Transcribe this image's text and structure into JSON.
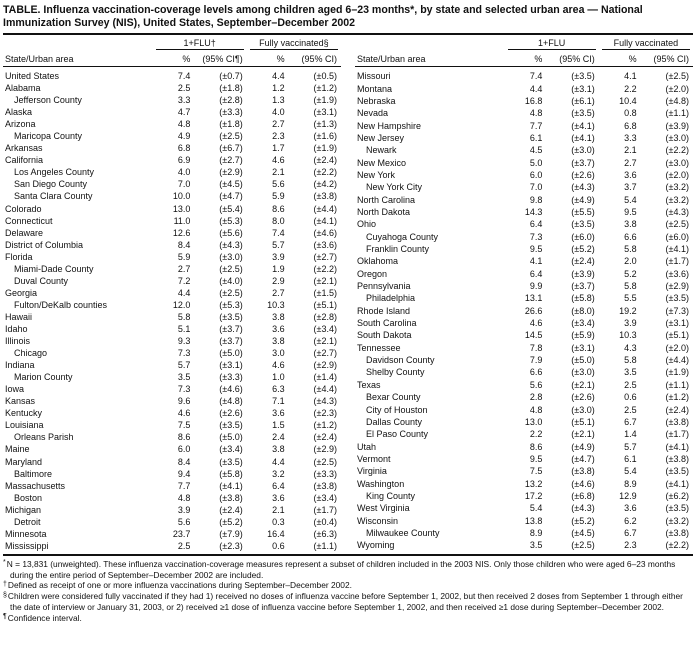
{
  "title": "TABLE. Influenza vaccination-coverage levels among children aged 6–23 months*, by state and selected urban area — National Immunization Survey (NIS), United States, September–December 2002",
  "header": {
    "state_col": "State/Urban area",
    "pct": "%",
    "ci": "(95% CI)",
    "ci_note": "(95% CI¶)",
    "left_group1": "1+FLU†",
    "left_group2": "Fully vaccinated§",
    "right_group1": "1+FLU",
    "right_group2": "Fully vaccinated"
  },
  "left_rows": [
    {
      "name": "United States",
      "indent": false,
      "flu_pct": "7.4",
      "flu_ci": "(±0.7)",
      "full_pct": "4.4",
      "full_ci": "(±0.5)"
    },
    {
      "name": "Alabama",
      "indent": false,
      "flu_pct": "2.5",
      "flu_ci": "(±1.8)",
      "full_pct": "1.2",
      "full_ci": "(±1.2)"
    },
    {
      "name": "Jefferson County",
      "indent": true,
      "flu_pct": "3.3",
      "flu_ci": "(±2.8)",
      "full_pct": "1.3",
      "full_ci": "(±1.9)"
    },
    {
      "name": "Alaska",
      "indent": false,
      "flu_pct": "4.7",
      "flu_ci": "(±3.3)",
      "full_pct": "4.0",
      "full_ci": "(±3.1)"
    },
    {
      "name": "Arizona",
      "indent": false,
      "flu_pct": "4.8",
      "flu_ci": "(±1.8)",
      "full_pct": "2.7",
      "full_ci": "(±1.3)"
    },
    {
      "name": "Maricopa County",
      "indent": true,
      "flu_pct": "4.9",
      "flu_ci": "(±2.5)",
      "full_pct": "2.3",
      "full_ci": "(±1.6)"
    },
    {
      "name": "Arkansas",
      "indent": false,
      "flu_pct": "6.8",
      "flu_ci": "(±6.7)",
      "full_pct": "1.7",
      "full_ci": "(±1.9)"
    },
    {
      "name": "California",
      "indent": false,
      "flu_pct": "6.9",
      "flu_ci": "(±2.7)",
      "full_pct": "4.6",
      "full_ci": "(±2.4)"
    },
    {
      "name": "Los Angeles County",
      "indent": true,
      "flu_pct": "4.0",
      "flu_ci": "(±2.9)",
      "full_pct": "2.1",
      "full_ci": "(±2.2)"
    },
    {
      "name": "San Diego County",
      "indent": true,
      "flu_pct": "7.0",
      "flu_ci": "(±4.5)",
      "full_pct": "5.6",
      "full_ci": "(±4.2)"
    },
    {
      "name": "Santa Clara County",
      "indent": true,
      "flu_pct": "10.0",
      "flu_ci": "(±4.7)",
      "full_pct": "5.9",
      "full_ci": "(±3.8)"
    },
    {
      "name": "Colorado",
      "indent": false,
      "flu_pct": "13.0",
      "flu_ci": "(±5.4)",
      "full_pct": "8.6",
      "full_ci": "(±4.4)"
    },
    {
      "name": "Connecticut",
      "indent": false,
      "flu_pct": "11.0",
      "flu_ci": "(±5.3)",
      "full_pct": "8.0",
      "full_ci": "(±4.1)"
    },
    {
      "name": "Delaware",
      "indent": false,
      "flu_pct": "12.6",
      "flu_ci": "(±5.6)",
      "full_pct": "7.4",
      "full_ci": "(±4.6)"
    },
    {
      "name": "District of Columbia",
      "indent": false,
      "flu_pct": "8.4",
      "flu_ci": "(±4.3)",
      "full_pct": "5.7",
      "full_ci": "(±3.6)"
    },
    {
      "name": "Florida",
      "indent": false,
      "flu_pct": "5.9",
      "flu_ci": "(±3.0)",
      "full_pct": "3.9",
      "full_ci": "(±2.7)"
    },
    {
      "name": "Miami-Dade County",
      "indent": true,
      "flu_pct": "2.7",
      "flu_ci": "(±2.5)",
      "full_pct": "1.9",
      "full_ci": "(±2.2)"
    },
    {
      "name": "Duval County",
      "indent": true,
      "flu_pct": "7.2",
      "flu_ci": "(±4.0)",
      "full_pct": "2.9",
      "full_ci": "(±2.1)"
    },
    {
      "name": "Georgia",
      "indent": false,
      "flu_pct": "4.4",
      "flu_ci": "(±2.5)",
      "full_pct": "2.7",
      "full_ci": "(±1.5)"
    },
    {
      "name": "Fulton/DeKalb counties",
      "indent": true,
      "flu_pct": "12.0",
      "flu_ci": "(±5.3)",
      "full_pct": "10.3",
      "full_ci": "(±5.1)"
    },
    {
      "name": "Hawaii",
      "indent": false,
      "flu_pct": "5.8",
      "flu_ci": "(±3.5)",
      "full_pct": "3.8",
      "full_ci": "(±2.8)"
    },
    {
      "name": "Idaho",
      "indent": false,
      "flu_pct": "5.1",
      "flu_ci": "(±3.7)",
      "full_pct": "3.6",
      "full_ci": "(±3.4)"
    },
    {
      "name": "Illinois",
      "indent": false,
      "flu_pct": "9.3",
      "flu_ci": "(±3.7)",
      "full_pct": "3.8",
      "full_ci": "(±2.1)"
    },
    {
      "name": "Chicago",
      "indent": true,
      "flu_pct": "7.3",
      "flu_ci": "(±5.0)",
      "full_pct": "3.0",
      "full_ci": "(±2.7)"
    },
    {
      "name": "Indiana",
      "indent": false,
      "flu_pct": "5.7",
      "flu_ci": "(±3.1)",
      "full_pct": "4.6",
      "full_ci": "(±2.9)"
    },
    {
      "name": "Marion County",
      "indent": true,
      "flu_pct": "3.5",
      "flu_ci": "(±3.3)",
      "full_pct": "1.0",
      "full_ci": "(±1.4)"
    },
    {
      "name": "Iowa",
      "indent": false,
      "flu_pct": "7.3",
      "flu_ci": "(±4.6)",
      "full_pct": "6.3",
      "full_ci": "(±4.4)"
    },
    {
      "name": "Kansas",
      "indent": false,
      "flu_pct": "9.6",
      "flu_ci": "(±4.8)",
      "full_pct": "7.1",
      "full_ci": "(±4.3)"
    },
    {
      "name": "Kentucky",
      "indent": false,
      "flu_pct": "4.6",
      "flu_ci": "(±2.6)",
      "full_pct": "3.6",
      "full_ci": "(±2.3)"
    },
    {
      "name": "Louisiana",
      "indent": false,
      "flu_pct": "7.5",
      "flu_ci": "(±3.5)",
      "full_pct": "1.5",
      "full_ci": "(±1.2)"
    },
    {
      "name": "Orleans Parish",
      "indent": true,
      "flu_pct": "8.6",
      "flu_ci": "(±5.0)",
      "full_pct": "2.4",
      "full_ci": "(±2.4)"
    },
    {
      "name": "Maine",
      "indent": false,
      "flu_pct": "6.0",
      "flu_ci": "(±3.4)",
      "full_pct": "3.8",
      "full_ci": "(±2.9)"
    },
    {
      "name": "Maryland",
      "indent": false,
      "flu_pct": "8.4",
      "flu_ci": "(±3.5)",
      "full_pct": "4.4",
      "full_ci": "(±2.5)"
    },
    {
      "name": "Baltimore",
      "indent": true,
      "flu_pct": "9.4",
      "flu_ci": "(±5.8)",
      "full_pct": "3.2",
      "full_ci": "(±3.3)"
    },
    {
      "name": "Massachusetts",
      "indent": false,
      "flu_pct": "7.7",
      "flu_ci": "(±4.1)",
      "full_pct": "6.4",
      "full_ci": "(±3.8)"
    },
    {
      "name": "Boston",
      "indent": true,
      "flu_pct": "4.8",
      "flu_ci": "(±3.8)",
      "full_pct": "3.6",
      "full_ci": "(±3.4)"
    },
    {
      "name": "Michigan",
      "indent": false,
      "flu_pct": "3.9",
      "flu_ci": "(±2.4)",
      "full_pct": "2.1",
      "full_ci": "(±1.7)"
    },
    {
      "name": "Detroit",
      "indent": true,
      "flu_pct": "5.6",
      "flu_ci": "(±5.2)",
      "full_pct": "0.3",
      "full_ci": "(±0.4)"
    },
    {
      "name": "Minnesota",
      "indent": false,
      "flu_pct": "23.7",
      "flu_ci": "(±7.9)",
      "full_pct": "16.4",
      "full_ci": "(±6.3)"
    },
    {
      "name": "Mississippi",
      "indent": false,
      "flu_pct": "2.5",
      "flu_ci": "(±2.3)",
      "full_pct": "0.6",
      "full_ci": "(±1.1)"
    }
  ],
  "right_rows": [
    {
      "name": "Missouri",
      "indent": false,
      "flu_pct": "7.4",
      "flu_ci": "(±3.5)",
      "full_pct": "4.1",
      "full_ci": "(±2.5)"
    },
    {
      "name": "Montana",
      "indent": false,
      "flu_pct": "4.4",
      "flu_ci": "(±3.1)",
      "full_pct": "2.2",
      "full_ci": "(±2.0)"
    },
    {
      "name": "Nebraska",
      "indent": false,
      "flu_pct": "16.8",
      "flu_ci": "(±6.1)",
      "full_pct": "10.4",
      "full_ci": "(±4.8)"
    },
    {
      "name": "Nevada",
      "indent": false,
      "flu_pct": "4.8",
      "flu_ci": "(±3.5)",
      "full_pct": "0.8",
      "full_ci": "(±1.1)"
    },
    {
      "name": "New Hampshire",
      "indent": false,
      "flu_pct": "7.7",
      "flu_ci": "(±4.1)",
      "full_pct": "6.8",
      "full_ci": "(±3.9)"
    },
    {
      "name": "New Jersey",
      "indent": false,
      "flu_pct": "6.1",
      "flu_ci": "(±4.1)",
      "full_pct": "3.3",
      "full_ci": "(±3.0)"
    },
    {
      "name": "Newark",
      "indent": true,
      "flu_pct": "4.5",
      "flu_ci": "(±3.0)",
      "full_pct": "2.1",
      "full_ci": "(±2.2)"
    },
    {
      "name": "New Mexico",
      "indent": false,
      "flu_pct": "5.0",
      "flu_ci": "(±3.7)",
      "full_pct": "2.7",
      "full_ci": "(±3.0)"
    },
    {
      "name": "New York",
      "indent": false,
      "flu_pct": "6.0",
      "flu_ci": "(±2.6)",
      "full_pct": "3.6",
      "full_ci": "(±2.0)"
    },
    {
      "name": "New York City",
      "indent": true,
      "flu_pct": "7.0",
      "flu_ci": "(±4.3)",
      "full_pct": "3.7",
      "full_ci": "(±3.2)"
    },
    {
      "name": "North Carolina",
      "indent": false,
      "flu_pct": "9.8",
      "flu_ci": "(±4.9)",
      "full_pct": "5.4",
      "full_ci": "(±3.2)"
    },
    {
      "name": "North Dakota",
      "indent": false,
      "flu_pct": "14.3",
      "flu_ci": "(±5.5)",
      "full_pct": "9.5",
      "full_ci": "(±4.3)"
    },
    {
      "name": "Ohio",
      "indent": false,
      "flu_pct": "6.4",
      "flu_ci": "(±3.5)",
      "full_pct": "3.8",
      "full_ci": "(±2.5)"
    },
    {
      "name": "Cuyahoga County",
      "indent": true,
      "flu_pct": "7.3",
      "flu_ci": "(±6.0)",
      "full_pct": "6.6",
      "full_ci": "(±6.0)"
    },
    {
      "name": "Franklin County",
      "indent": true,
      "flu_pct": "9.5",
      "flu_ci": "(±5.2)",
      "full_pct": "5.8",
      "full_ci": "(±4.1)"
    },
    {
      "name": "Oklahoma",
      "indent": false,
      "flu_pct": "4.1",
      "flu_ci": "(±2.4)",
      "full_pct": "2.0",
      "full_ci": "(±1.7)"
    },
    {
      "name": "Oregon",
      "indent": false,
      "flu_pct": "6.4",
      "flu_ci": "(±3.9)",
      "full_pct": "5.2",
      "full_ci": "(±3.6)"
    },
    {
      "name": "Pennsylvania",
      "indent": false,
      "flu_pct": "9.9",
      "flu_ci": "(±3.7)",
      "full_pct": "5.8",
      "full_ci": "(±2.9)"
    },
    {
      "name": "Philadelphia",
      "indent": true,
      "flu_pct": "13.1",
      "flu_ci": "(±5.8)",
      "full_pct": "5.5",
      "full_ci": "(±3.5)"
    },
    {
      "name": "Rhode Island",
      "indent": false,
      "flu_pct": "26.6",
      "flu_ci": "(±8.0)",
      "full_pct": "19.2",
      "full_ci": "(±7.3)"
    },
    {
      "name": "South Carolina",
      "indent": false,
      "flu_pct": "4.6",
      "flu_ci": "(±3.4)",
      "full_pct": "3.9",
      "full_ci": "(±3.1)"
    },
    {
      "name": "South Dakota",
      "indent": false,
      "flu_pct": "14.5",
      "flu_ci": "(±5.9)",
      "full_pct": "10.3",
      "full_ci": "(±5.1)"
    },
    {
      "name": "Tennessee",
      "indent": false,
      "flu_pct": "7.8",
      "flu_ci": "(±3.1)",
      "full_pct": "4.3",
      "full_ci": "(±2.0)"
    },
    {
      "name": "Davidson County",
      "indent": true,
      "flu_pct": "7.9",
      "flu_ci": "(±5.0)",
      "full_pct": "5.8",
      "full_ci": "(±4.4)"
    },
    {
      "name": "Shelby County",
      "indent": true,
      "flu_pct": "6.6",
      "flu_ci": "(±3.0)",
      "full_pct": "3.5",
      "full_ci": "(±1.9)"
    },
    {
      "name": "Texas",
      "indent": false,
      "flu_pct": "5.6",
      "flu_ci": "(±2.1)",
      "full_pct": "2.5",
      "full_ci": "(±1.1)"
    },
    {
      "name": "Bexar County",
      "indent": true,
      "flu_pct": "2.8",
      "flu_ci": "(±2.6)",
      "full_pct": "0.6",
      "full_ci": "(±1.2)"
    },
    {
      "name": "City of Houston",
      "indent": true,
      "flu_pct": "4.8",
      "flu_ci": "(±3.0)",
      "full_pct": "2.5",
      "full_ci": "(±2.4)"
    },
    {
      "name": "Dallas County",
      "indent": true,
      "flu_pct": "13.0",
      "flu_ci": "(±5.1)",
      "full_pct": "6.7",
      "full_ci": "(±3.8)"
    },
    {
      "name": "El Paso County",
      "indent": true,
      "flu_pct": "2.2",
      "flu_ci": "(±2.1)",
      "full_pct": "1.4",
      "full_ci": "(±1.7)"
    },
    {
      "name": "Utah",
      "indent": false,
      "flu_pct": "8.6",
      "flu_ci": "(±4.9)",
      "full_pct": "5.7",
      "full_ci": "(±4.1)"
    },
    {
      "name": "Vermont",
      "indent": false,
      "flu_pct": "9.5",
      "flu_ci": "(±4.7)",
      "full_pct": "6.1",
      "full_ci": "(±3.8)"
    },
    {
      "name": "Virginia",
      "indent": false,
      "flu_pct": "7.5",
      "flu_ci": "(±3.8)",
      "full_pct": "5.4",
      "full_ci": "(±3.5)"
    },
    {
      "name": "Washington",
      "indent": false,
      "flu_pct": "13.2",
      "flu_ci": "(±4.6)",
      "full_pct": "8.9",
      "full_ci": "(±4.1)"
    },
    {
      "name": "King County",
      "indent": true,
      "flu_pct": "17.2",
      "flu_ci": "(±6.8)",
      "full_pct": "12.9",
      "full_ci": "(±6.2)"
    },
    {
      "name": "West Virginia",
      "indent": false,
      "flu_pct": "5.4",
      "flu_ci": "(±4.3)",
      "full_pct": "3.6",
      "full_ci": "(±3.5)"
    },
    {
      "name": "Wisconsin",
      "indent": false,
      "flu_pct": "13.8",
      "flu_ci": "(±5.2)",
      "full_pct": "6.2",
      "full_ci": "(±3.2)"
    },
    {
      "name": "Milwaukee County",
      "indent": true,
      "flu_pct": "8.9",
      "flu_ci": "(±4.5)",
      "full_pct": "6.7",
      "full_ci": "(±3.8)"
    },
    {
      "name": "Wyoming",
      "indent": false,
      "flu_pct": "3.5",
      "flu_ci": "(±2.5)",
      "full_pct": "2.3",
      "full_ci": "(±2.2)"
    }
  ],
  "footnotes": [
    {
      "marker": "*",
      "text": "N = 13,831 (unweighted). These influenza vaccination-coverage measures represent a subset of children included in the 2003 NIS. Only those children who were aged 6–23 months during the entire period of September–December 2002 are included."
    },
    {
      "marker": "†",
      "text": "Defined as receipt of one or more influenza vaccinations during September–December 2002."
    },
    {
      "marker": "§",
      "text": "Children were considered fully vaccinated if they had 1) received no doses of influenza vaccine before September 1, 2002, but then received 2 doses from September 1 through either the date of interview or January 31, 2003, or 2) received ≥1 dose of influenza vaccine before September 1, 2002, and then received ≥1 dose during September–December 2002."
    },
    {
      "marker": "¶",
      "text": "Confidence interval."
    }
  ]
}
